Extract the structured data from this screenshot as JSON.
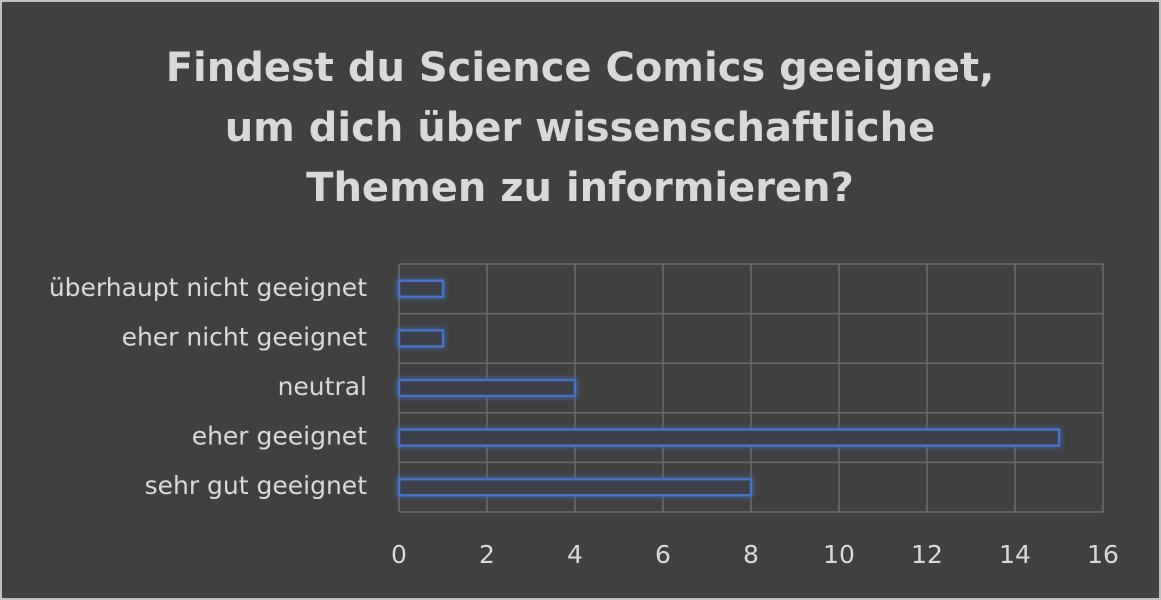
{
  "chart_data": {
    "type": "bar",
    "orientation": "horizontal",
    "title": "Findest du Science Comics geeignet, um dich über wissenschaftliche Themen zu informieren?",
    "categories": [
      "überhaupt nicht geeignet",
      "eher nicht geeignet",
      "neutral",
      "eher geeignet",
      "sehr gut geeignet"
    ],
    "values": [
      1,
      1,
      4,
      15,
      8
    ],
    "color": "#4472c4",
    "xlim": [
      0,
      16
    ],
    "xticks": [
      0,
      2,
      4,
      6,
      8,
      10,
      12,
      14,
      16
    ],
    "grid": true
  }
}
